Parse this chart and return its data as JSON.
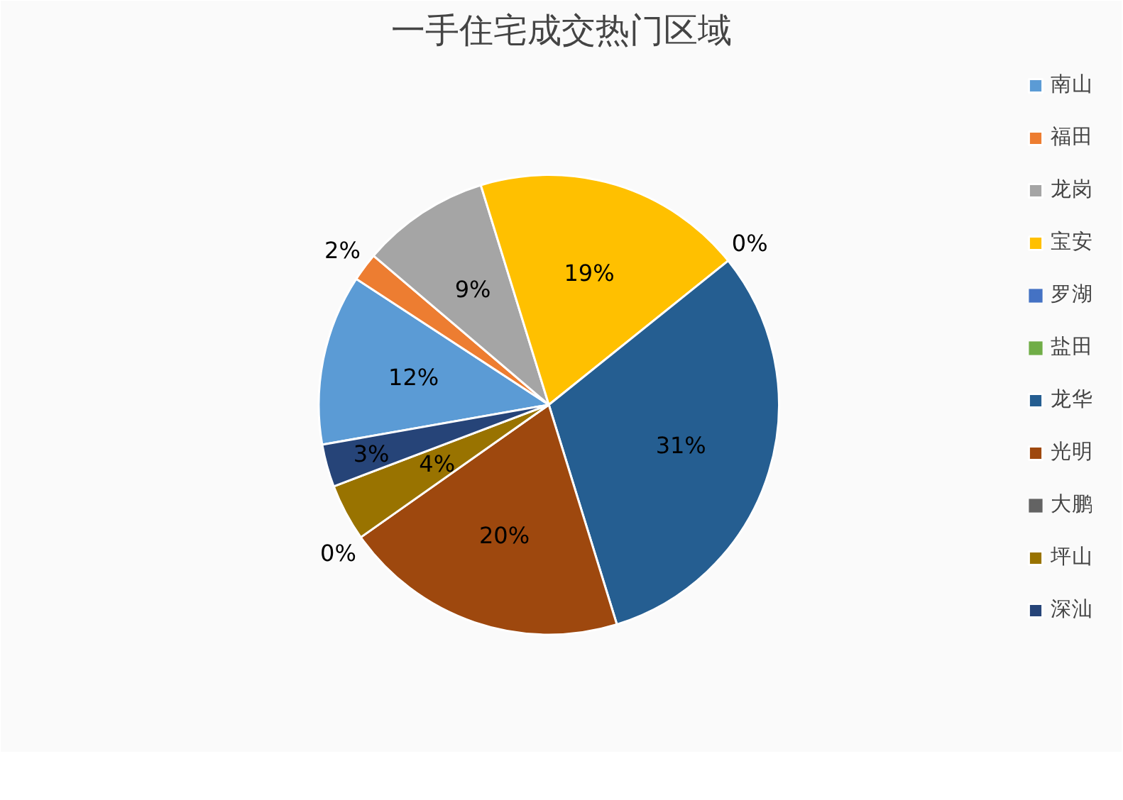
{
  "chart_data": {
    "type": "pie",
    "title": "一手住宅成交热门区域",
    "categories": [
      "南山",
      "福田",
      "龙岗",
      "宝安",
      "罗湖",
      "盐田",
      "龙华",
      "光明",
      "大鹏",
      "坪山",
      "深汕"
    ],
    "values": [
      12,
      2,
      9,
      19,
      0,
      0,
      31,
      20,
      0,
      4,
      3
    ],
    "value_labels": [
      "12%",
      "2%",
      "9%",
      "19%",
      "0%",
      null,
      "31%",
      "20%",
      "0%",
      "4%",
      "3%"
    ],
    "colors": [
      "#5b9bd5",
      "#ed7d31",
      "#a5a5a5",
      "#ffc000",
      "#4472c4",
      "#70ad47",
      "#255e91",
      "#9e480e",
      "#636363",
      "#997300",
      "#264478"
    ],
    "legend": "right"
  }
}
